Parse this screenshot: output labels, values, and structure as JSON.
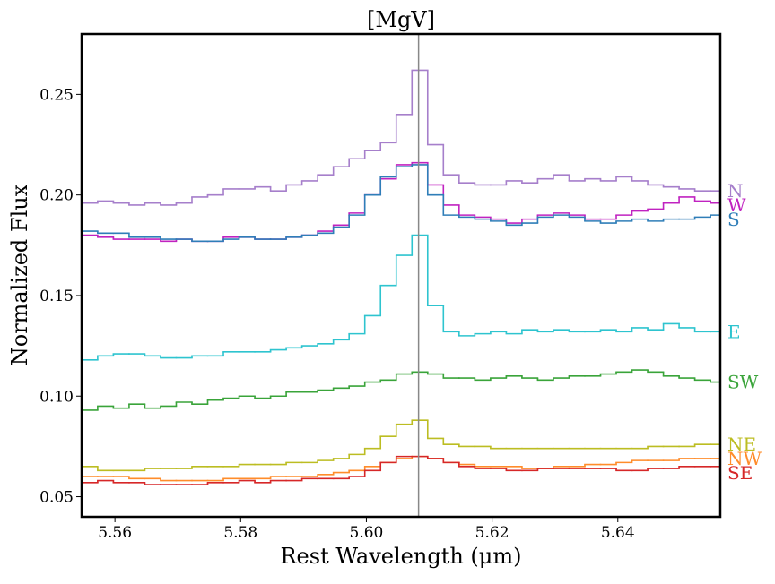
{
  "chart_data": {
    "type": "step",
    "title": "[MgV]",
    "x_label": "Rest Wavelength (μm)",
    "y_label": "Normalized Flux",
    "xlim": [
      5.5547,
      5.6563
    ],
    "ylim": [
      0.04,
      0.28
    ],
    "xticks": [
      5.56,
      5.58,
      {
        "value": 5.6,
        "label": "5.60"
      },
      5.62,
      5.64
    ],
    "yticks": [
      0.05,
      {
        "value": 0.1,
        "label": "0.10"
      },
      0.15,
      {
        "value": 0.2,
        "label": "0.20"
      },
      0.25
    ],
    "vline": 5.6083,
    "vline_color": "#888888",
    "x": [
      5.556,
      5.5585,
      5.561,
      5.5635,
      5.566,
      5.5685,
      5.571,
      5.5735,
      5.576,
      5.5785,
      5.581,
      5.5835,
      5.586,
      5.5885,
      5.591,
      5.5935,
      5.596,
      5.5985,
      5.601,
      5.6035,
      5.606,
      5.6085,
      5.611,
      5.6135,
      5.616,
      5.6185,
      5.621,
      5.6235,
      5.626,
      5.6285,
      5.631,
      5.6335,
      5.636,
      5.6385,
      5.641,
      5.6435,
      5.646,
      5.6485,
      5.651,
      5.6535,
      5.656
    ],
    "series": [
      {
        "name": "N",
        "color": "#a67fcb",
        "values": [
          0.196,
          0.197,
          0.196,
          0.195,
          0.196,
          0.195,
          0.196,
          0.199,
          0.2,
          0.203,
          0.203,
          0.204,
          0.202,
          0.205,
          0.207,
          0.21,
          0.214,
          0.218,
          0.222,
          0.226,
          0.24,
          0.262,
          0.225,
          0.21,
          0.206,
          0.205,
          0.205,
          0.207,
          0.206,
          0.208,
          0.21,
          0.207,
          0.208,
          0.207,
          0.209,
          0.207,
          0.205,
          0.204,
          0.203,
          0.202,
          0.202
        ]
      },
      {
        "name": "W",
        "color": "#c023c0",
        "values": [
          0.18,
          0.179,
          0.178,
          0.178,
          0.178,
          0.177,
          0.178,
          0.177,
          0.177,
          0.179,
          0.179,
          0.178,
          0.178,
          0.179,
          0.18,
          0.182,
          0.185,
          0.191,
          0.2,
          0.208,
          0.215,
          0.216,
          0.205,
          0.195,
          0.19,
          0.189,
          0.188,
          0.186,
          0.188,
          0.19,
          0.191,
          0.19,
          0.188,
          0.188,
          0.19,
          0.192,
          0.193,
          0.196,
          0.199,
          0.197,
          0.196
        ]
      },
      {
        "name": "S",
        "color": "#2f7eb8",
        "values": [
          0.182,
          0.181,
          0.181,
          0.179,
          0.179,
          0.178,
          0.178,
          0.177,
          0.177,
          0.178,
          0.179,
          0.178,
          0.178,
          0.179,
          0.18,
          0.181,
          0.184,
          0.19,
          0.2,
          0.209,
          0.214,
          0.215,
          0.2,
          0.19,
          0.189,
          0.188,
          0.187,
          0.185,
          0.186,
          0.189,
          0.19,
          0.189,
          0.187,
          0.186,
          0.187,
          0.188,
          0.187,
          0.188,
          0.188,
          0.189,
          0.19
        ]
      },
      {
        "name": "E",
        "color": "#2ec4cf",
        "values": [
          0.118,
          0.12,
          0.121,
          0.121,
          0.12,
          0.119,
          0.119,
          0.12,
          0.12,
          0.122,
          0.122,
          0.122,
          0.123,
          0.124,
          0.125,
          0.126,
          0.128,
          0.131,
          0.14,
          0.155,
          0.17,
          0.18,
          0.145,
          0.132,
          0.13,
          0.131,
          0.132,
          0.131,
          0.133,
          0.132,
          0.133,
          0.132,
          0.132,
          0.133,
          0.132,
          0.134,
          0.133,
          0.136,
          0.134,
          0.132,
          0.132
        ]
      },
      {
        "name": "SW",
        "color": "#3aa43a",
        "values": [
          0.093,
          0.095,
          0.094,
          0.096,
          0.094,
          0.095,
          0.097,
          0.096,
          0.098,
          0.099,
          0.1,
          0.099,
          0.1,
          0.102,
          0.102,
          0.103,
          0.104,
          0.105,
          0.107,
          0.108,
          0.111,
          0.112,
          0.111,
          0.109,
          0.109,
          0.108,
          0.109,
          0.11,
          0.109,
          0.108,
          0.109,
          0.11,
          0.11,
          0.111,
          0.112,
          0.113,
          0.112,
          0.11,
          0.109,
          0.108,
          0.107
        ]
      },
      {
        "name": "NE",
        "color": "#bcbd22",
        "values": [
          0.065,
          0.063,
          0.063,
          0.063,
          0.064,
          0.064,
          0.064,
          0.065,
          0.065,
          0.065,
          0.066,
          0.066,
          0.066,
          0.067,
          0.067,
          0.068,
          0.069,
          0.071,
          0.074,
          0.08,
          0.086,
          0.088,
          0.079,
          0.076,
          0.075,
          0.075,
          0.074,
          0.074,
          0.074,
          0.074,
          0.074,
          0.074,
          0.074,
          0.074,
          0.074,
          0.074,
          0.075,
          0.075,
          0.075,
          0.076,
          0.076
        ]
      },
      {
        "name": "NW",
        "color": "#ff8c2a",
        "values": [
          0.06,
          0.06,
          0.06,
          0.059,
          0.059,
          0.058,
          0.058,
          0.058,
          0.058,
          0.059,
          0.059,
          0.059,
          0.06,
          0.06,
          0.06,
          0.061,
          0.062,
          0.063,
          0.065,
          0.067,
          0.069,
          0.07,
          0.069,
          0.067,
          0.066,
          0.065,
          0.065,
          0.065,
          0.064,
          0.064,
          0.065,
          0.065,
          0.066,
          0.066,
          0.067,
          0.068,
          0.068,
          0.068,
          0.069,
          0.069,
          0.069
        ]
      },
      {
        "name": "SE",
        "color": "#d62728",
        "values": [
          0.057,
          0.058,
          0.057,
          0.057,
          0.056,
          0.056,
          0.056,
          0.056,
          0.057,
          0.057,
          0.058,
          0.057,
          0.058,
          0.058,
          0.059,
          0.059,
          0.059,
          0.06,
          0.063,
          0.067,
          0.07,
          0.07,
          0.069,
          0.067,
          0.065,
          0.064,
          0.064,
          0.063,
          0.063,
          0.064,
          0.064,
          0.064,
          0.064,
          0.064,
          0.063,
          0.063,
          0.064,
          0.064,
          0.065,
          0.065,
          0.065
        ]
      }
    ]
  }
}
